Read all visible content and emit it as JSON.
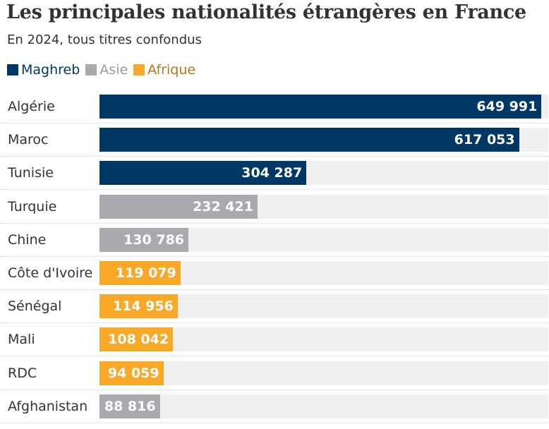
{
  "title": "Les principales nationalités étrangères en France",
  "subtitle": "En 2024, tous titres confondus",
  "legend": [
    {
      "label": "Maghreb",
      "color": "#003865"
    },
    {
      "label": "Asie",
      "color": "#a9a9ae"
    },
    {
      "label": "Afrique",
      "color": "#f9a828"
    }
  ],
  "chart_data": {
    "type": "bar",
    "orientation": "horizontal",
    "title": "Les principales nationalités étrangères en France",
    "subtitle": "En 2024, tous titres confondus",
    "categories": [
      "Algérie",
      "Maroc",
      "Tunisie",
      "Turquie",
      "Chine",
      "Côte d'Ivoire",
      "Sénégal",
      "Mali",
      "RDC",
      "Afghanistan"
    ],
    "values": [
      649991,
      617053,
      304287,
      232421,
      130786,
      119079,
      114956,
      108042,
      94059,
      88816
    ],
    "value_labels": [
      "649 991",
      "617 053",
      "304 287",
      "232 421",
      "130 786",
      "119 079",
      "114 956",
      "108 042",
      "94 059",
      "88 816"
    ],
    "groups": [
      "Maghreb",
      "Maghreb",
      "Maghreb",
      "Asie",
      "Asie",
      "Afrique",
      "Afrique",
      "Afrique",
      "Afrique",
      "Asie"
    ],
    "group_colors": {
      "Maghreb": "#003865",
      "Asie": "#a9a9ae",
      "Afrique": "#f9a828"
    },
    "xlim": [
      0,
      660000
    ],
    "xlabel": "",
    "ylabel": "",
    "grid": false,
    "legend_position": "top-left"
  }
}
